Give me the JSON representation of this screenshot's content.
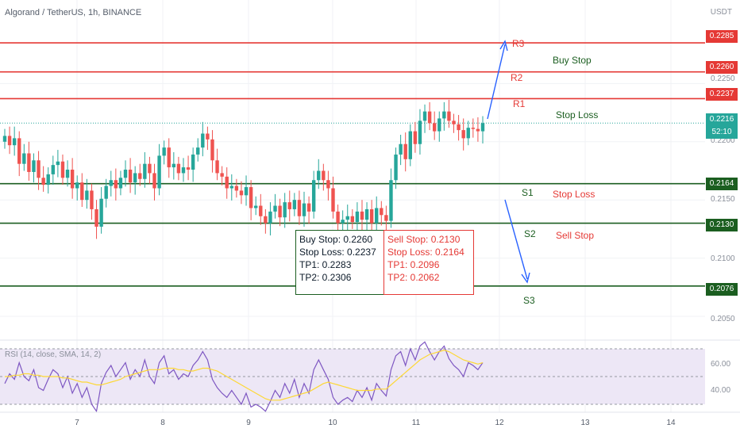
{
  "header": {
    "symbol_title": "Algorand / TetherUS, 1h, BINANCE",
    "currency": "USDT"
  },
  "rsi_label": "RSI (14, close, SMA, 14, 2)",
  "buy_box": [
    "Buy Stop: 0.2260",
    "Stop Loss: 0.2237",
    "TP1: 0.2283",
    "TP2: 0.2306"
  ],
  "sell_box": [
    "Sell Stop: 0.2130",
    "Stop Loss: 0.2164",
    "TP1: 0.2096",
    "TP2: 0.2062"
  ],
  "annotations": {
    "r3": "R3",
    "r2": "R2",
    "r1": "R1",
    "s1": "S1",
    "s2": "S2",
    "s3": "S3",
    "buy_stop": "Buy Stop",
    "stop_loss_top": "Stop Loss",
    "stop_loss_bottom": "Stop Loss",
    "sell_stop": "Sell Stop"
  },
  "price_badges": {
    "r3": "0.2285",
    "r2": "0.2260",
    "r1": "0.2237",
    "current": "0.2216",
    "countdown": "52:10",
    "s1": "0.2164",
    "s2": "0.2130",
    "s3": "0.2076"
  },
  "price_axis_labels": [
    "0.2250",
    "0.2200",
    "0.2150",
    "0.2100",
    "0.2050"
  ],
  "rsi_axis_labels": [
    "60.00",
    "40.00"
  ],
  "x_axis_labels": [
    "7",
    "8",
    "9",
    "10",
    "11",
    "12",
    "13",
    "14"
  ],
  "colors": {
    "up": "#26a69a",
    "down": "#ef5350",
    "resistance": "#e53935",
    "support": "#1b5e20",
    "arrow": "#2962ff",
    "rsi_line": "#7e57c2",
    "rsi_sma": "#fdd835",
    "rsi_band": "#ede7f6"
  },
  "chart_data": {
    "type": "candlestick",
    "pair": "Algorand / TetherUS",
    "interval": "1h",
    "exchange": "BINANCE",
    "y_range": [
      0.2035,
      0.23
    ],
    "resistance_levels": [
      0.2285,
      0.226,
      0.2237
    ],
    "support_levels": [
      0.2164,
      0.213,
      0.2076
    ],
    "current_price": 0.2216,
    "closes": [
      0.2205,
      0.2197,
      0.2203,
      0.2181,
      0.219,
      0.2174,
      0.2184,
      0.2169,
      0.2163,
      0.2172,
      0.218,
      0.2183,
      0.2169,
      0.2176,
      0.216,
      0.2165,
      0.215,
      0.2158,
      0.2142,
      0.2127,
      0.2151,
      0.2162,
      0.2167,
      0.216,
      0.2169,
      0.2176,
      0.2165,
      0.2173,
      0.2168,
      0.2181,
      0.2173,
      0.216,
      0.2188,
      0.2195,
      0.2178,
      0.2181,
      0.2173,
      0.2178,
      0.2176,
      0.2189,
      0.2195,
      0.2207,
      0.2202,
      0.2184,
      0.2173,
      0.217,
      0.216,
      0.2162,
      0.2158,
      0.2154,
      0.2161,
      0.2143,
      0.2145,
      0.2136,
      0.213,
      0.214,
      0.2145,
      0.2135,
      0.2148,
      0.2142,
      0.215,
      0.2136,
      0.2147,
      0.214,
      0.2167,
      0.2175,
      0.2167,
      0.216,
      0.214,
      0.213,
      0.2133,
      0.2136,
      0.2131,
      0.214,
      0.2133,
      0.2142,
      0.213,
      0.2143,
      0.2137,
      0.2132,
      0.2167,
      0.2189,
      0.2198,
      0.2185,
      0.2209,
      0.2198,
      0.2218,
      0.2226,
      0.2216,
      0.2209,
      0.222,
      0.2226,
      0.2218,
      0.2215,
      0.221,
      0.2203,
      0.2212,
      0.2211,
      0.2209,
      0.2216
    ],
    "rsi": {
      "levels": [
        70,
        50,
        30
      ],
      "values": [
        45,
        52,
        48,
        60,
        50,
        47,
        55,
        42,
        40,
        48,
        55,
        52,
        42,
        50,
        38,
        45,
        35,
        42,
        30,
        25,
        45,
        53,
        58,
        50,
        55,
        60,
        48,
        55,
        50,
        62,
        50,
        45,
        60,
        65,
        52,
        55,
        48,
        52,
        50,
        58,
        62,
        68,
        62,
        48,
        42,
        38,
        35,
        40,
        35,
        30,
        38,
        28,
        30,
        28,
        25,
        32,
        40,
        35,
        45,
        38,
        48,
        35,
        45,
        38,
        55,
        62,
        55,
        48,
        35,
        30,
        33,
        35,
        32,
        40,
        35,
        42,
        33,
        45,
        40,
        36,
        55,
        65,
        68,
        58,
        70,
        62,
        72,
        75,
        68,
        62,
        68,
        72,
        63,
        58,
        55,
        50,
        60,
        58,
        55,
        60
      ],
      "sma": [
        50,
        50,
        51,
        51,
        52,
        52,
        51,
        51,
        50,
        50,
        50,
        50,
        49,
        49,
        48,
        47,
        46,
        46,
        45,
        44,
        44,
        45,
        46,
        47,
        48,
        50,
        51,
        52,
        53,
        54,
        55,
        55,
        55,
        56,
        56,
        56,
        55,
        55,
        54,
        54,
        55,
        56,
        56,
        55,
        54,
        52,
        50,
        48,
        46,
        44,
        42,
        40,
        38,
        36,
        34,
        33,
        33,
        33,
        34,
        35,
        36,
        37,
        38,
        39,
        41,
        43,
        45,
        46,
        45,
        44,
        43,
        42,
        41,
        40,
        40,
        40,
        40,
        41,
        41,
        41,
        44,
        47,
        50,
        53,
        56,
        59,
        62,
        64,
        66,
        67,
        68,
        69,
        68,
        66,
        64,
        62,
        61,
        60,
        59,
        60
      ]
    }
  }
}
